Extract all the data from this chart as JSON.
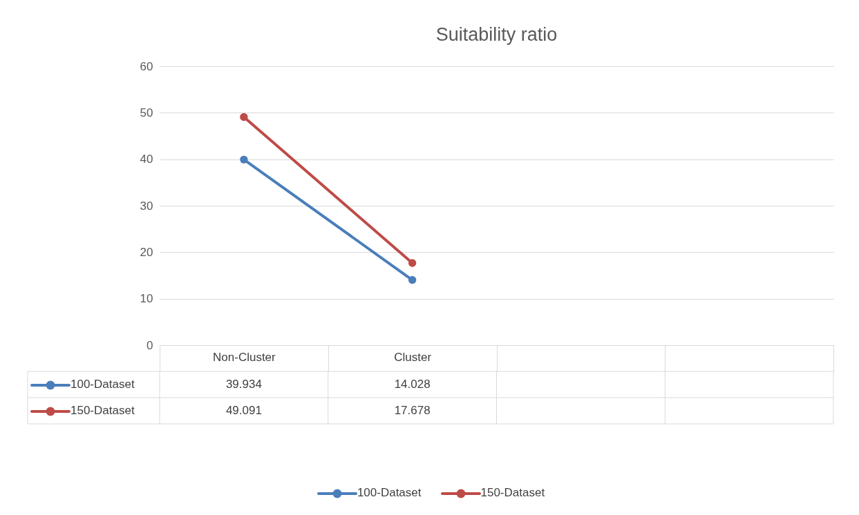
{
  "chart_data": {
    "type": "line",
    "title": "Suitability ratio",
    "categories": [
      "Non-Cluster",
      "Cluster",
      null,
      null
    ],
    "series": [
      {
        "name": "100-Dataset",
        "color": "#4a7ebb",
        "values": [
          39.934,
          14.028,
          null,
          null
        ]
      },
      {
        "name": "150-Dataset",
        "color": "#be4b48",
        "values": [
          49.091,
          17.678,
          null,
          null
        ]
      }
    ],
    "ylim": [
      0,
      60
    ],
    "yticks": [
      0,
      10,
      20,
      30,
      40,
      50,
      60
    ],
    "grid": "y",
    "legend": "bottom",
    "marker": "circle",
    "data_labels": true
  }
}
